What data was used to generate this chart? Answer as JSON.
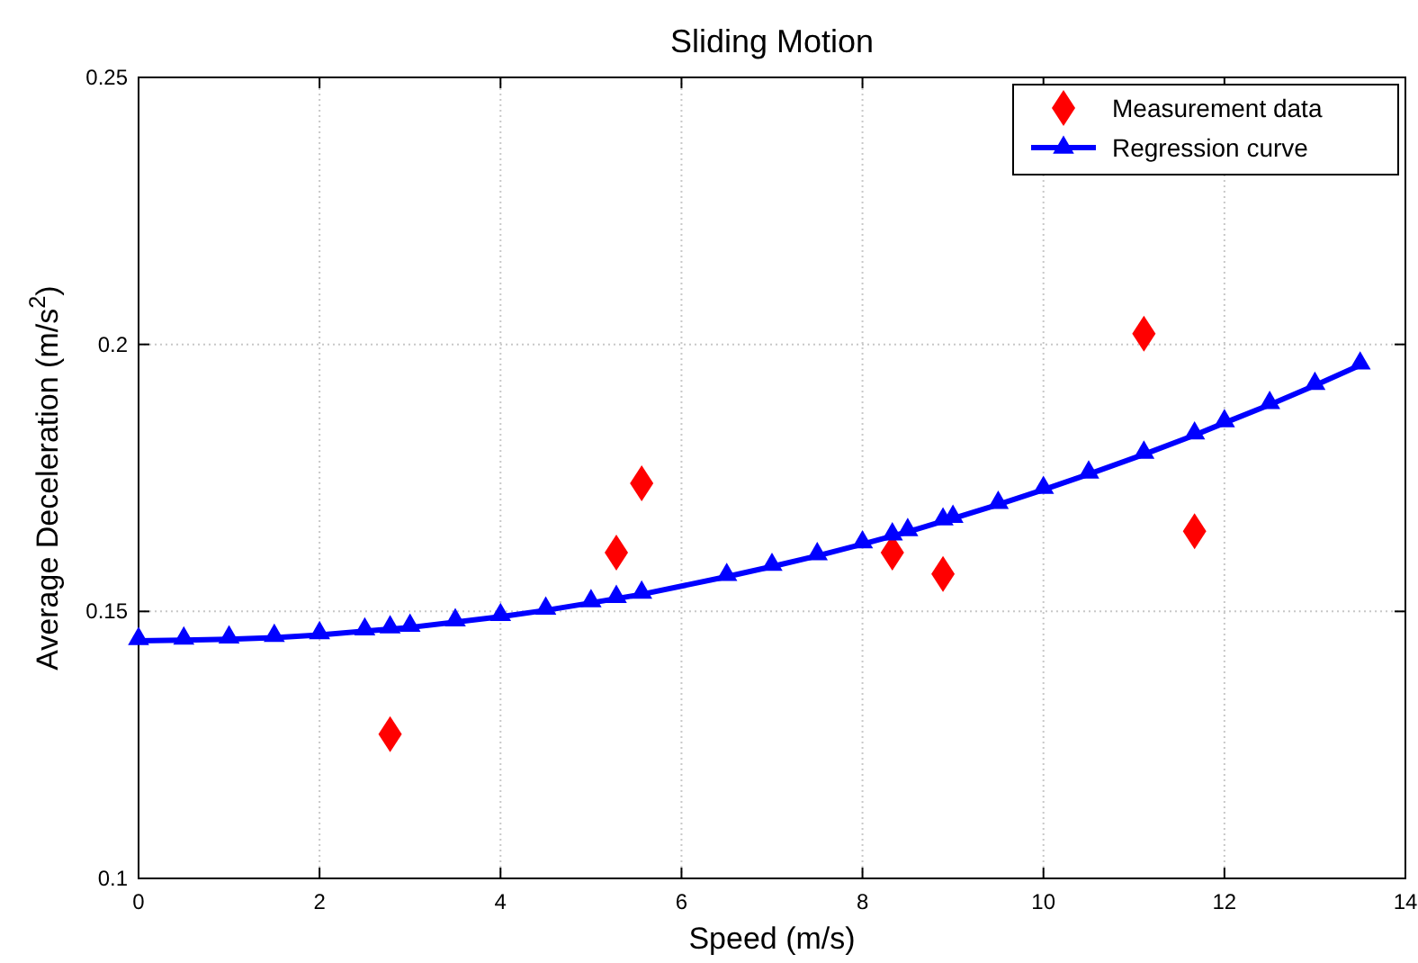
{
  "chart_data": {
    "type": "scatter",
    "title": "Sliding Motion",
    "xlabel": "Speed (m/s)",
    "ylabel": "Average Deceleration (m/s$^{2}$)",
    "xlim": [
      0,
      14
    ],
    "xticks": [
      0,
      2,
      4,
      6,
      8,
      10,
      12,
      14
    ],
    "ylim": [
      0.1,
      0.25
    ],
    "yticks": [
      0.1,
      0.15,
      0.2,
      0.25
    ],
    "grid": true,
    "legend": "top right",
    "series": [
      {
        "name": "Measurement data",
        "color": "#ff0000",
        "marker": "diamond",
        "x": [
          2.78,
          5.28,
          5.56,
          8.33,
          8.89,
          11.11,
          11.67
        ],
        "values": [
          0.127,
          0.161,
          0.174,
          0.161,
          0.157,
          0.202,
          0.165
        ]
      },
      {
        "name": "Regression curve",
        "type": "line",
        "color": "#0000ff",
        "marker": "triangle",
        "line_style": "solid",
        "x": [
          0,
          0.5,
          1,
          1.5,
          2,
          2.5,
          2.78,
          3,
          3.5,
          4,
          4.5,
          5,
          5.28,
          5.56,
          6.5,
          7,
          7.5,
          8,
          8.33,
          8.5,
          8.89,
          9,
          9.5,
          10,
          10.5,
          11.11,
          11.67,
          12,
          12.5,
          13,
          13.5
        ],
        "values": [
          0.1445,
          0.1446,
          0.1448,
          0.1451,
          0.1456,
          0.1463,
          0.1467,
          0.147,
          0.148,
          0.149,
          0.1502,
          0.1516,
          0.1524,
          0.1532,
          0.1565,
          0.1584,
          0.1604,
          0.1626,
          0.1641,
          0.1649,
          0.1669,
          0.1674,
          0.17,
          0.1728,
          0.1757,
          0.1794,
          0.183,
          0.1853,
          0.1887,
          0.1923,
          0.1961
        ]
      }
    ]
  }
}
